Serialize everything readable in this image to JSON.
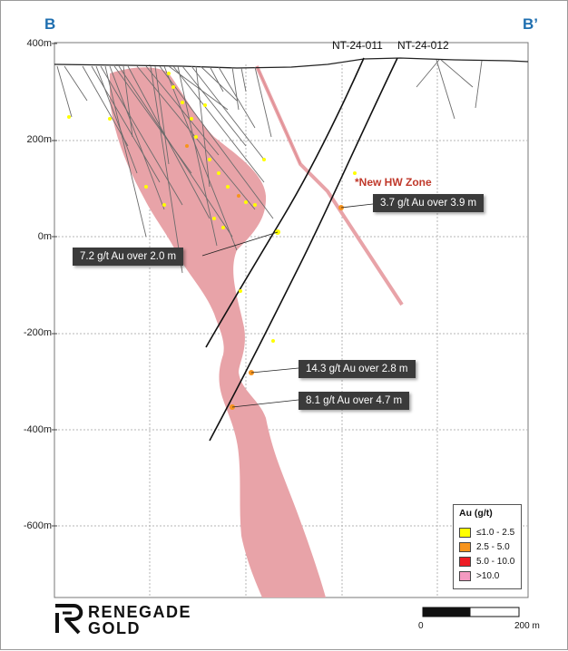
{
  "section": {
    "left_label": "B",
    "right_label": "B’"
  },
  "y_axis": {
    "labels": [
      "400m",
      "200m",
      "0m",
      "-200m",
      "-400m",
      "-600m"
    ]
  },
  "drill_holes": [
    {
      "name": "NT-24-011"
    },
    {
      "name": "NT-24-012"
    }
  ],
  "hw_zone_label": "*New HW Zone",
  "callouts": [
    {
      "text": "3.7 g/t Au over 3.9 m"
    },
    {
      "text": "7.2 g/t Au over 2.0 m"
    },
    {
      "text": "14.3 g/t Au over 2.8 m"
    },
    {
      "text": "8.1 g/t Au over 4.7 m"
    }
  ],
  "legend": {
    "title": "Au (g/t)",
    "items": [
      {
        "label": "≤1.0 - 2.5",
        "color": "#ffff00"
      },
      {
        "label": "2.5 - 5.0",
        "color": "#f7941d"
      },
      {
        "label": "5.0 - 10.0",
        "color": "#ee1c24"
      },
      {
        "label": ">10.0",
        "color": "#f49ac1"
      }
    ]
  },
  "scale_bar": {
    "start_label": "0",
    "end_label": "200 m"
  },
  "logo": {
    "line1": "RENEGADE",
    "line2": "GOLD"
  },
  "colors": {
    "ore_zone": "#e8a3a8",
    "hw_zone": "#e8a3a8",
    "grid": "#b5b5b5",
    "callout_bg": "#3b3b3b",
    "section_label": "#1f6fb0"
  }
}
